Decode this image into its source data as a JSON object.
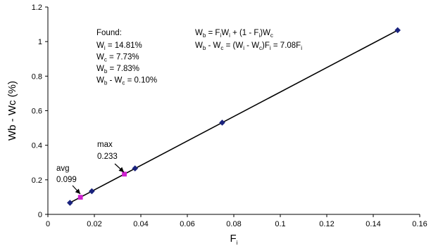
{
  "chart_data": {
    "type": "scatter",
    "xlabel_base": "F",
    "xlabel_sub": "i",
    "ylabel": "Wb - Wc (%)",
    "xlim": [
      0,
      0.16
    ],
    "ylim": [
      0,
      1.2
    ],
    "x_ticks": [
      "0",
      "0.02",
      "0.04",
      "0.06",
      "0.08",
      "0.1",
      "0.12",
      "0.14",
      "0.16"
    ],
    "y_ticks": [
      "0",
      "0.2",
      "0.4",
      "0.6",
      "0.8",
      "1",
      "1.2"
    ],
    "grid": false,
    "fit_line": {
      "slope": 7.08,
      "x_range": [
        0.0095,
        0.1505
      ]
    },
    "series": [
      {
        "x": [
          0.0095,
          0.0189,
          0.0375,
          0.075,
          0.1505
        ],
        "y": [
          0.067,
          0.134,
          0.266,
          0.531,
          1.066
        ],
        "color": "#1a237e",
        "marker": "diamond"
      },
      {
        "x": [
          0.014,
          0.0329
        ],
        "y": [
          0.099,
          0.233
        ],
        "color": "#d020d0",
        "marker": "square"
      }
    ],
    "annotations": {
      "found": {
        "header": "Found:",
        "lines": [
          {
            "a": "W",
            "a_sub": "i",
            "rest": " = 14.81%"
          },
          {
            "a": "W",
            "a_sub": "c",
            "rest": " = 7.73%"
          },
          {
            "a": "W",
            "a_sub": "b",
            "rest": " = 7.83%"
          },
          {
            "a": "W",
            "a_sub": "b",
            "rest": " - W",
            "b_sub": "c",
            "tail": " = 0.10%"
          }
        ]
      },
      "equation1": [
        {
          "t": "W"
        },
        {
          "s": "b"
        },
        {
          "t": " = F"
        },
        {
          "s": "i"
        },
        {
          "t": "W"
        },
        {
          "s": "i"
        },
        {
          "t": " + (1 - F"
        },
        {
          "s": "i"
        },
        {
          "t": ")W"
        },
        {
          "s": "c"
        }
      ],
      "equation2": [
        {
          "t": "W"
        },
        {
          "s": "b"
        },
        {
          "t": " - W"
        },
        {
          "s": "c"
        },
        {
          "t": " = (W"
        },
        {
          "s": "i"
        },
        {
          "t": " - W"
        },
        {
          "s": "c"
        },
        {
          "t": ")F"
        },
        {
          "s": "i"
        },
        {
          "t": " = 7.08F"
        },
        {
          "s": "i"
        }
      ],
      "max_label": "max",
      "max_value": "0.233",
      "avg_label": "avg",
      "avg_value": "0.099"
    }
  }
}
